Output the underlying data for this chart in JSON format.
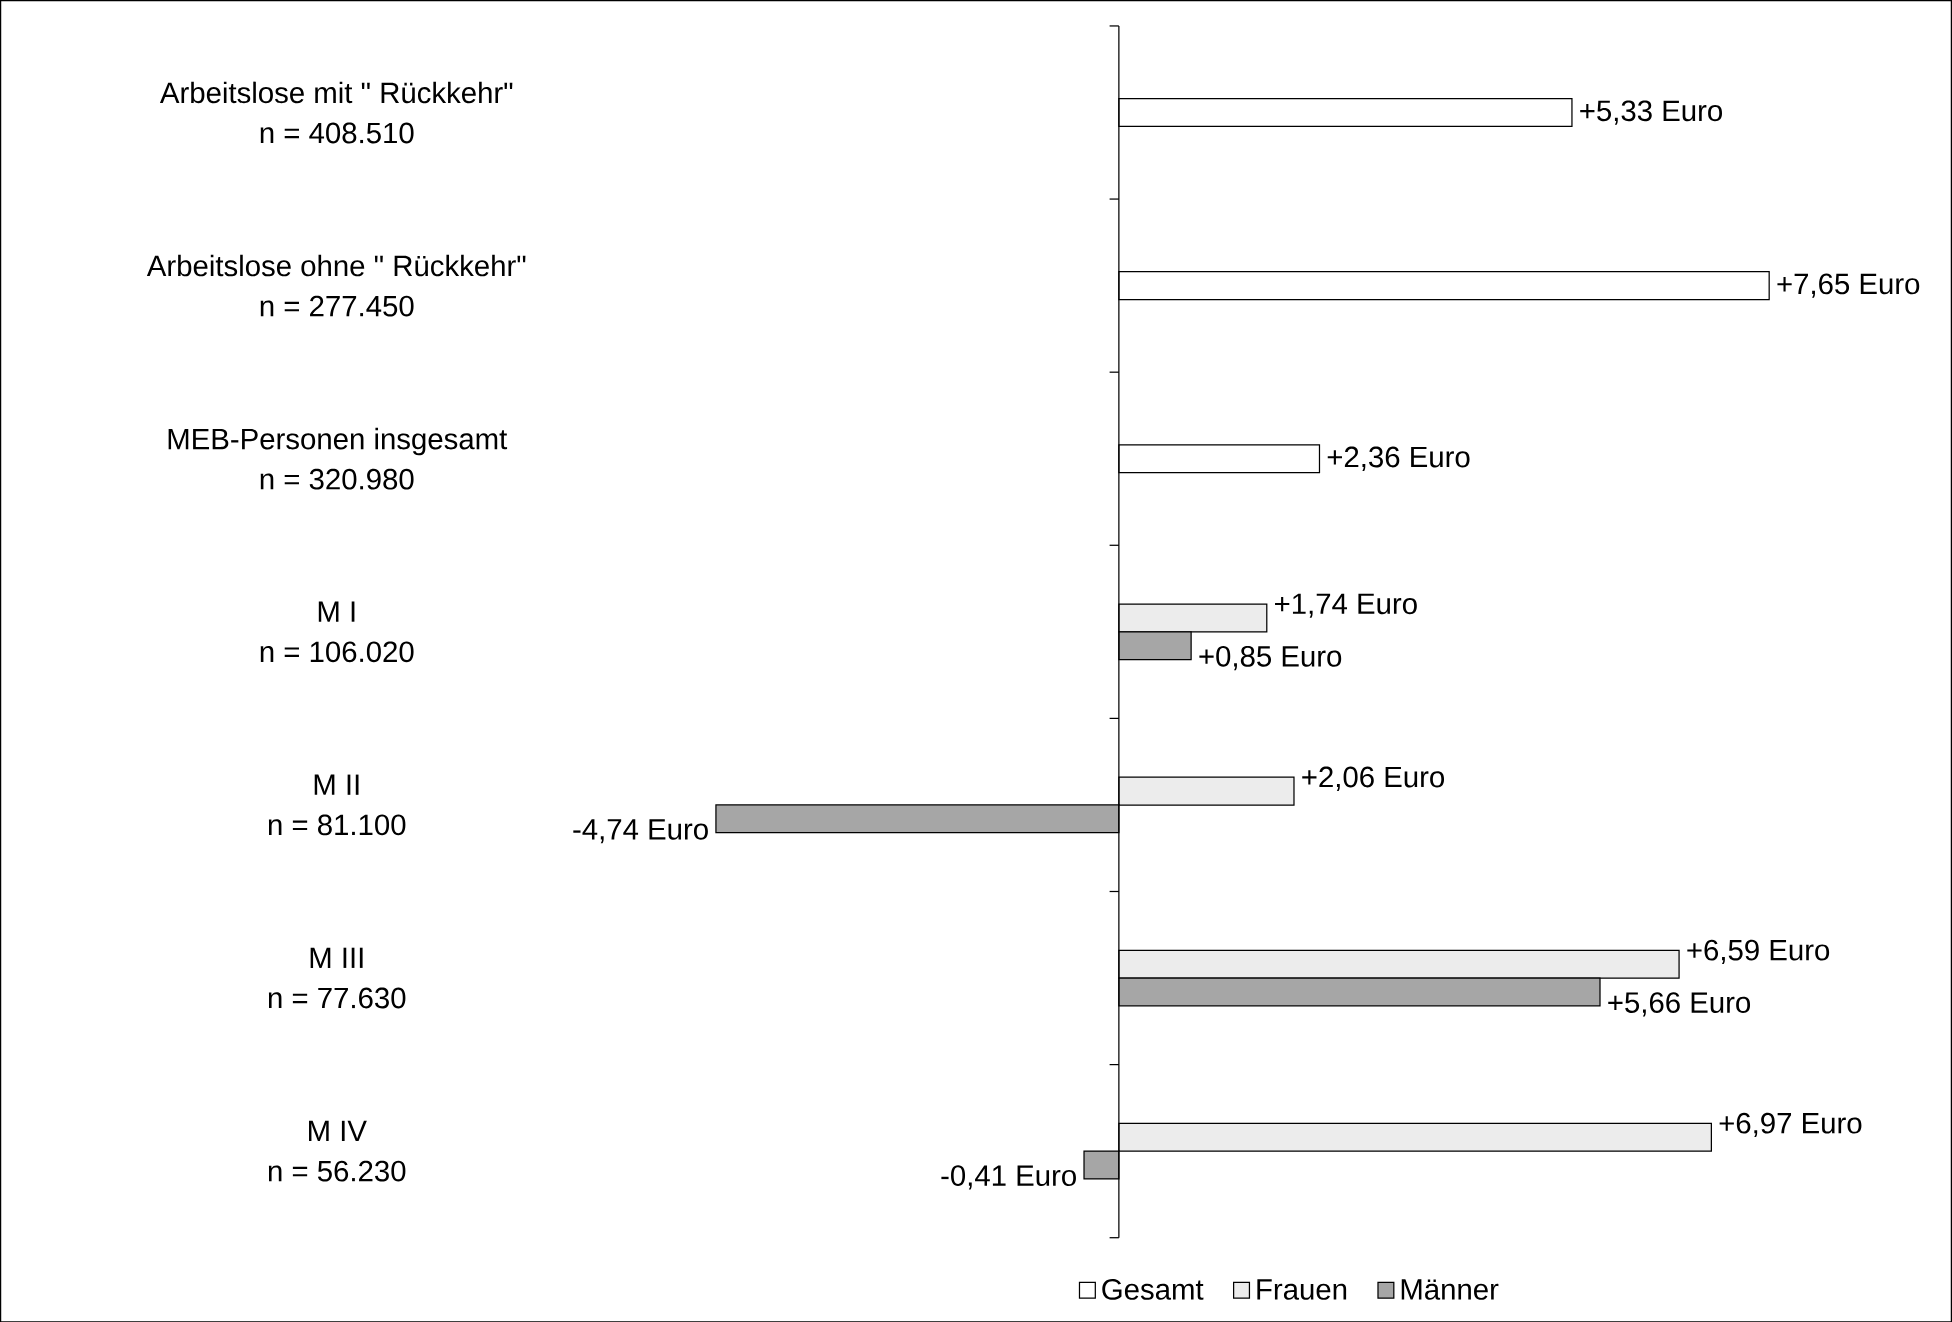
{
  "chart_data": {
    "type": "bar",
    "orientation": "horizontal",
    "categories": [
      "Arbeitslose mit \" Rückkehr\"\nn = 408.510",
      "Arbeitslose ohne \" Rückkehr\"\nn = 277.450",
      "MEB-Personen insgesamt\nn = 320.980",
      "M I\nn = 106.020",
      "M II\nn = 81.100",
      "M III\nn = 77.630",
      "M IV\nn = 56.230"
    ],
    "series": [
      {
        "name": "Gesamt",
        "color": "#ffffff",
        "values": [
          5.33,
          7.65,
          2.36,
          null,
          null,
          null,
          null
        ],
        "value_labels": [
          "+5,33 Euro",
          "+7,65 Euro",
          "+2,36 Euro",
          null,
          null,
          null,
          null
        ]
      },
      {
        "name": "Frauen",
        "color": "#ececec",
        "values": [
          null,
          null,
          null,
          1.74,
          2.06,
          6.59,
          6.97
        ],
        "value_labels": [
          null,
          null,
          null,
          "+1,74 Euro",
          "+2,06 Euro",
          "+6,59 Euro",
          "+6,97 Euro"
        ]
      },
      {
        "name": "Männer",
        "color": "#a6a6a6",
        "values": [
          null,
          null,
          null,
          0.85,
          -4.74,
          5.66,
          -0.41
        ],
        "value_labels": [
          null,
          null,
          null,
          "+0,85 Euro",
          "-4,74 Euro",
          "+5,66 Euro",
          "-0,41 Euro"
        ]
      }
    ],
    "legend": "bottom"
  }
}
